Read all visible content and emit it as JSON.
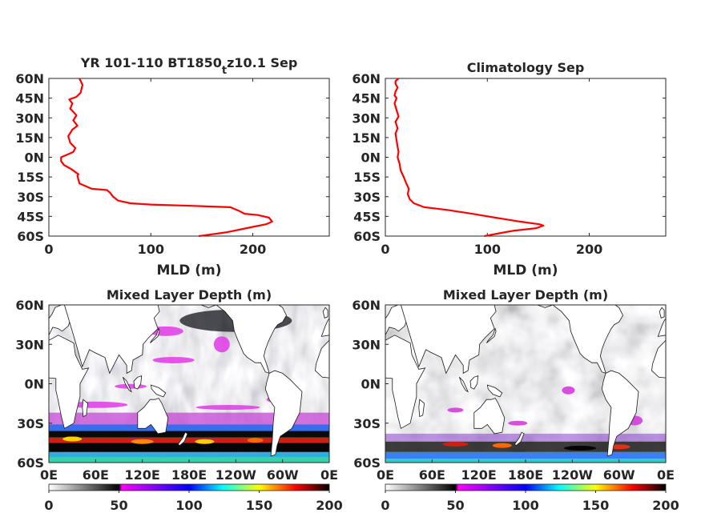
{
  "chart_data": [
    {
      "type": "line",
      "title": "YR 101-110 BT1850",
      "title_subscript": "t",
      "title_suffix": "z10.1 Sep",
      "xlabel": "MLD (m)",
      "ylabel": "",
      "xlim": [
        0,
        275
      ],
      "ylim": [
        -60,
        60
      ],
      "xticks": [
        "0",
        "100",
        "200"
      ],
      "yticks": [
        "60N",
        "45N",
        "30N",
        "15N",
        "0N",
        "15S",
        "30S",
        "45S",
        "60S"
      ],
      "grid": false,
      "series": [
        {
          "color": "#ff0000",
          "x": [
            147,
            175,
            200,
            213,
            219,
            216,
            205,
            192,
            187,
            178,
            140,
            100,
            80,
            68,
            63,
            60,
            57,
            42,
            30,
            28,
            29,
            22,
            15,
            12,
            12,
            18,
            24,
            26,
            21,
            19,
            23,
            28,
            24,
            27,
            21,
            23,
            20,
            27,
            31,
            33,
            30
          ],
          "y": [
            -60,
            -57,
            -53,
            -51,
            -49,
            -46,
            -44,
            -43,
            -41,
            -38,
            -37,
            -36,
            -35,
            -33,
            -30,
            -27,
            -25,
            -24,
            -20,
            -14,
            -13,
            -9,
            -6,
            -3,
            0,
            2,
            4,
            7,
            11,
            16,
            21,
            24,
            28,
            32,
            37,
            41,
            44,
            46,
            49,
            55,
            60
          ]
        }
      ]
    },
    {
      "type": "line",
      "title": "Climatology Sep",
      "xlabel": "MLD (m)",
      "ylabel": "",
      "xlim": [
        0,
        275
      ],
      "ylim": [
        -60,
        60
      ],
      "xticks": [
        "0",
        "100",
        "200"
      ],
      "yticks": [
        "60N",
        "45N",
        "30N",
        "15N",
        "0N",
        "15S",
        "30S",
        "45S",
        "60S"
      ],
      "grid": false,
      "series": [
        {
          "color": "#ff0000",
          "x": [
            97,
            125,
            148,
            155,
            151,
            132,
            108,
            85,
            60,
            38,
            28,
            24,
            22,
            23,
            20,
            18,
            15,
            14,
            12,
            13,
            12,
            11,
            10,
            12,
            10,
            13,
            11,
            9,
            11,
            9,
            10,
            12,
            10,
            10,
            13
          ],
          "y": [
            -60,
            -56,
            -54,
            -52,
            -51,
            -49,
            -46,
            -43,
            -40,
            -38,
            -35,
            -32,
            -28,
            -24,
            -19,
            -15,
            -10,
            -5,
            0,
            4,
            8,
            13,
            18,
            22,
            27,
            31,
            36,
            41,
            45,
            47,
            50,
            53,
            56,
            58,
            60
          ]
        }
      ]
    },
    {
      "type": "heatmap",
      "title": "Mixed Layer Depth (m)",
      "xticks": [
        "0E",
        "60E",
        "120E",
        "180E",
        "120W",
        "60W",
        "0E"
      ],
      "yticks": [
        "60N",
        "30N",
        "0N",
        "30S",
        "60S"
      ],
      "colorbar_ticks": [
        "0",
        "50",
        "100",
        "150",
        "200"
      ],
      "clim": [
        0,
        200
      ],
      "colormap": [
        "#ffffff",
        "#000000",
        "#ff00ff",
        "#0000ff",
        "#00ffff",
        "#ffff00",
        "#ff0000",
        "#000000"
      ]
    },
    {
      "type": "heatmap",
      "title": "Mixed Layer Depth (m)",
      "xticks": [
        "0E",
        "60E",
        "120E",
        "180E",
        "120W",
        "60W",
        "0E"
      ],
      "yticks": [
        "60N",
        "30N",
        "0N",
        "30S",
        "60S"
      ],
      "colorbar_ticks": [
        "0",
        "50",
        "100",
        "150",
        "200"
      ],
      "clim": [
        0,
        200
      ],
      "colormap": [
        "#ffffff",
        "#000000",
        "#ff00ff",
        "#0000ff",
        "#00ffff",
        "#ffff00",
        "#ff0000",
        "#000000"
      ]
    }
  ]
}
